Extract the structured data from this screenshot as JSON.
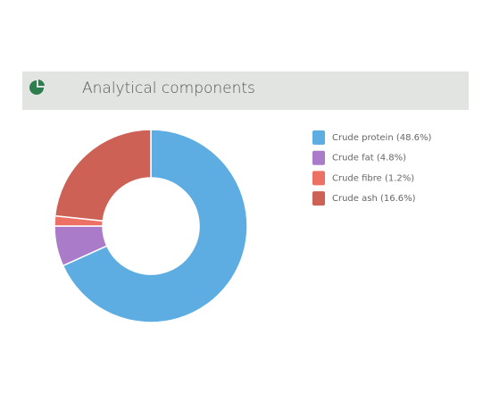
{
  "chart_data": {
    "type": "pie",
    "donut": true,
    "title": "Analytical components",
    "categories": [
      "Crude protein (48.6%)",
      "Crude fat (4.8%)",
      "Crude fibre (1.2%)",
      "Crude ash (16.6%)"
    ],
    "values": [
      48.6,
      4.8,
      1.2,
      16.6
    ],
    "colors": [
      "#5dade2",
      "#a97bc9",
      "#ec7063",
      "#cd6155"
    ],
    "legend": "right"
  }
}
